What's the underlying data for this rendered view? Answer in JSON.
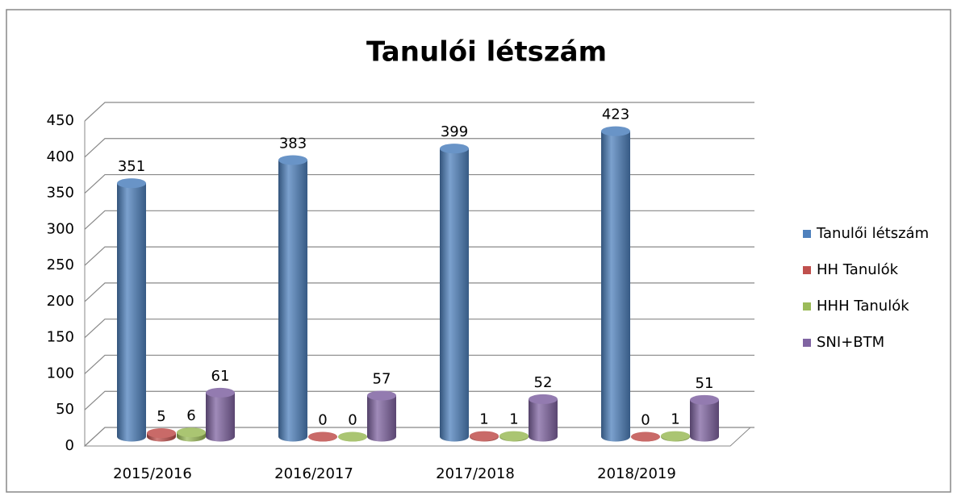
{
  "chart_data": {
    "type": "bar3d",
    "title": "Tanulói létszám",
    "categories": [
      "2015/2016",
      "2016/2017",
      "2017/2018",
      "2018/2019"
    ],
    "series": [
      {
        "name": "Tanulői létszám",
        "color": "#4f81bd",
        "values": [
          351,
          383,
          399,
          423
        ]
      },
      {
        "name": "HH Tanulók",
        "color": "#c0504d",
        "values": [
          5,
          0,
          1,
          0
        ]
      },
      {
        "name": "HHH Tanulók",
        "color": "#9bbb59",
        "values": [
          6,
          0,
          1,
          1
        ]
      },
      {
        "name": "SNI+BTM",
        "color": "#8064a2",
        "values": [
          61,
          57,
          52,
          51
        ]
      }
    ],
    "ylim": [
      0,
      450
    ],
    "yticks": [
      0,
      50,
      100,
      150,
      200,
      250,
      300,
      350,
      400,
      450
    ],
    "grid": true,
    "legend": "right"
  }
}
